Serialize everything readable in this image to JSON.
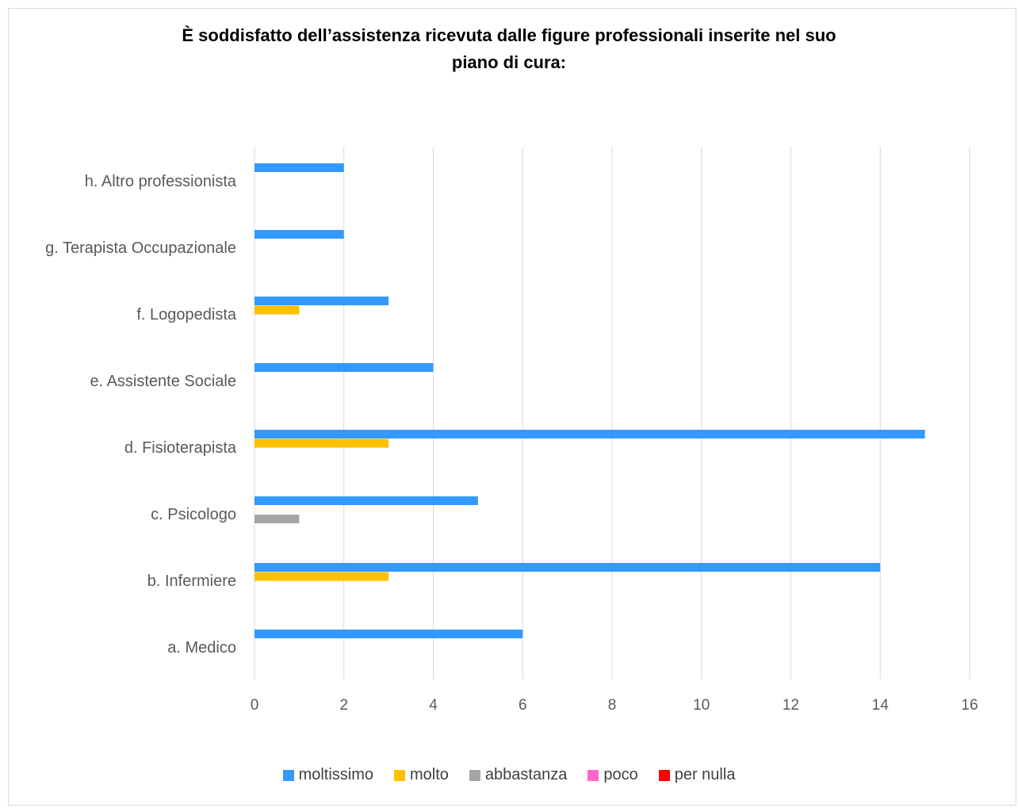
{
  "chart_data": {
    "type": "bar",
    "orientation": "horizontal",
    "title": "È soddisfatto dell’assistenza ricevuta dalle figure professionali inserite nel suo piano di cura:",
    "title_lines": [
      "È soddisfatto dell’assistenza ricevuta dalle figure professionali inserite nel suo",
      "piano di cura:"
    ],
    "categories": [
      "a. Medico",
      "b. Infermiere",
      "c. Psicologo",
      "d. Fisioterapista",
      "e. Assistente Sociale",
      "f. Logopedista",
      "g. Terapista Occupazionale",
      "h. Altro professionista"
    ],
    "series": [
      {
        "name": "moltissimo",
        "color": "#3399ff",
        "values": [
          6,
          14,
          5,
          15,
          4,
          3,
          2,
          2
        ]
      },
      {
        "name": "molto",
        "color": "#ffc000",
        "values": [
          0,
          3,
          0,
          3,
          0,
          1,
          0,
          0
        ]
      },
      {
        "name": "abbastanza",
        "color": "#a5a5a5",
        "values": [
          0,
          0,
          1,
          0,
          0,
          0,
          0,
          0
        ]
      },
      {
        "name": "poco",
        "color": "#ff66cc",
        "values": [
          0,
          0,
          0,
          0,
          0,
          0,
          0,
          0
        ]
      },
      {
        "name": "per nulla",
        "color": "#ff0000",
        "values": [
          0,
          0,
          0,
          0,
          0,
          0,
          0,
          0
        ]
      }
    ],
    "xlim": [
      0,
      16
    ],
    "xticks": [
      "0",
      "2",
      "4",
      "6",
      "8",
      "10",
      "12",
      "14",
      "16"
    ],
    "grid": true,
    "legend_position": "bottom"
  }
}
